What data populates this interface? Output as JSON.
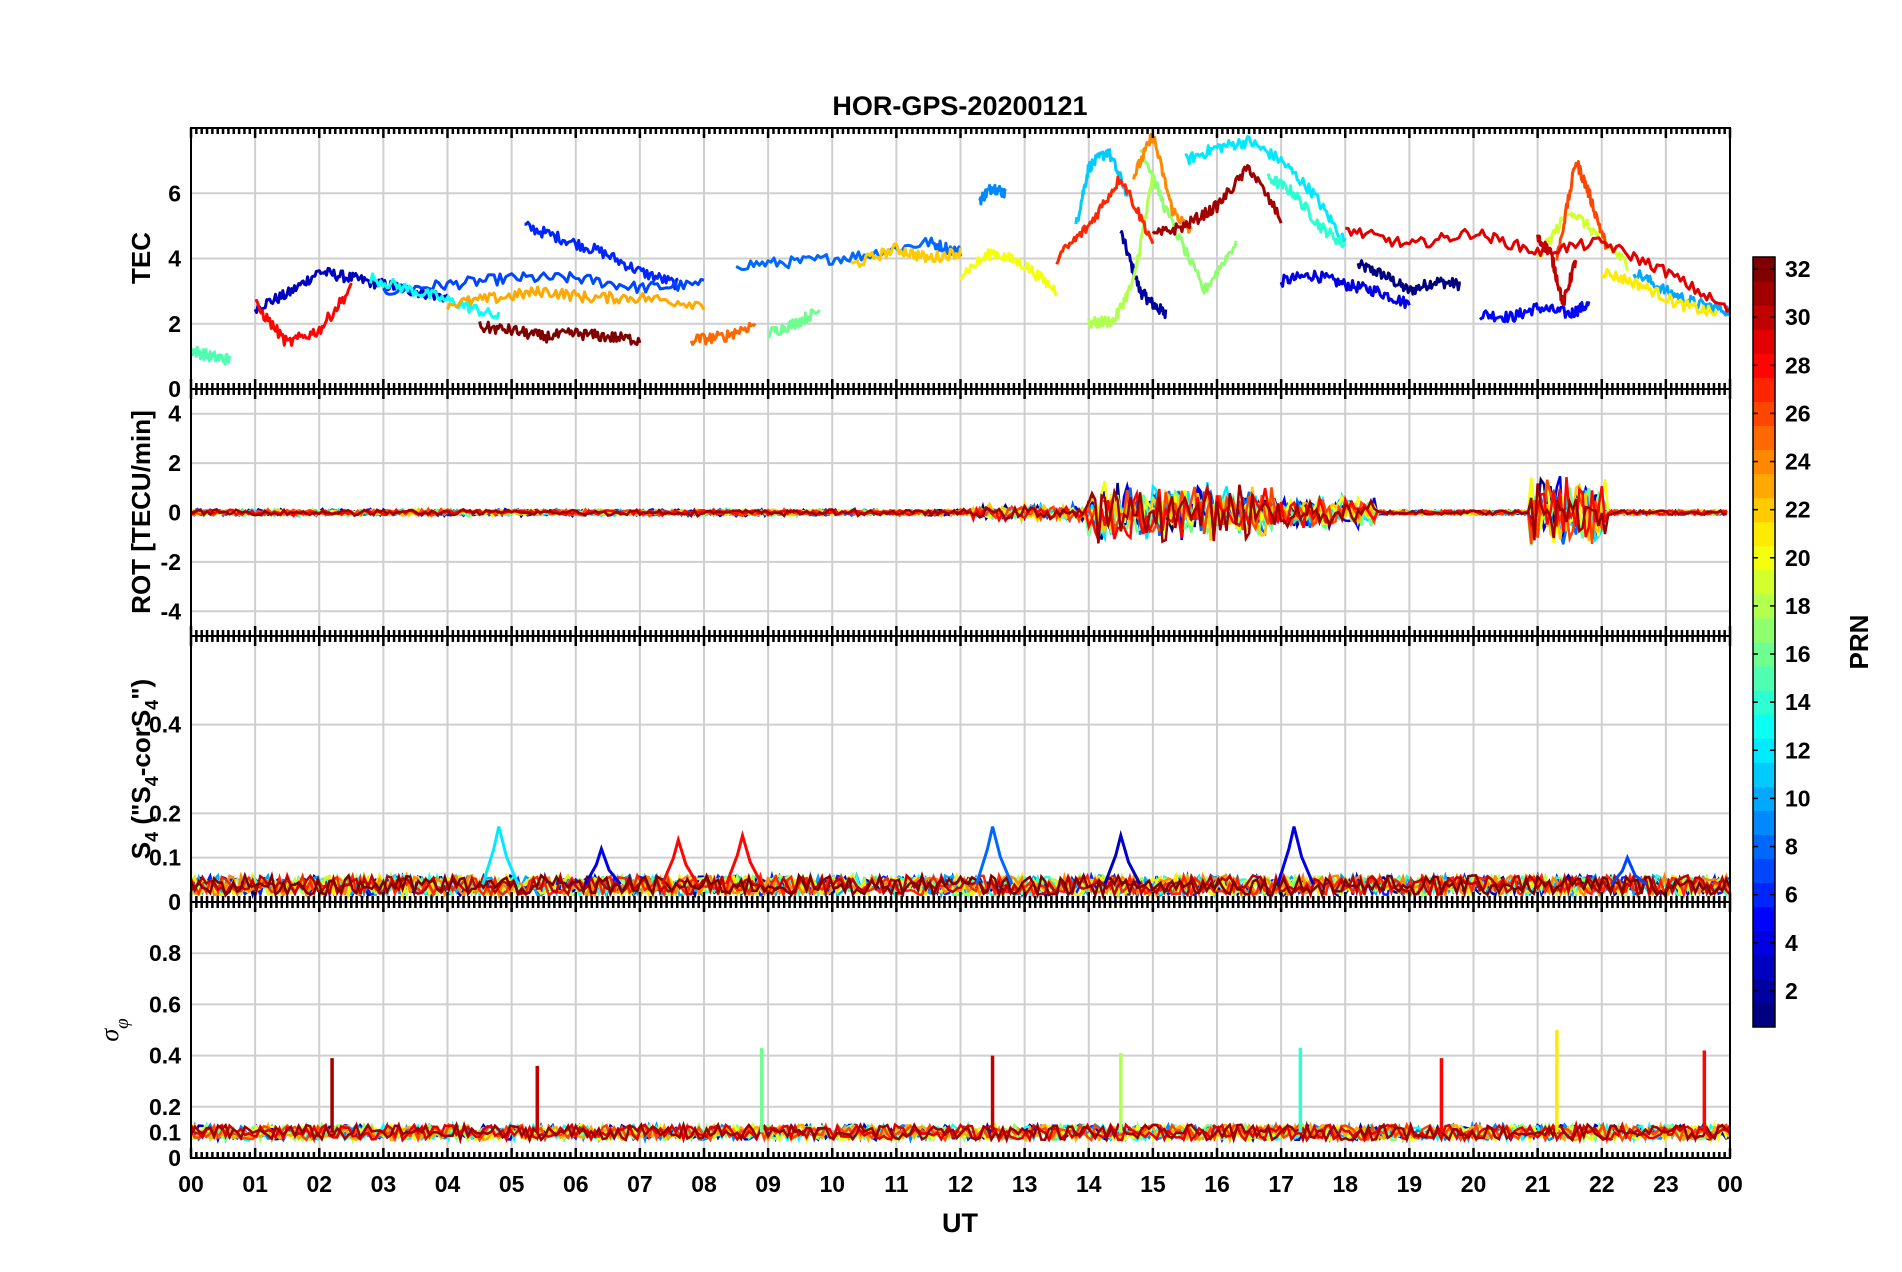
{
  "chart_data": {
    "type": "line",
    "title": "HOR-GPS-20200121",
    "xlabel": "UT",
    "x_ticks": [
      "00",
      "01",
      "02",
      "03",
      "04",
      "05",
      "06",
      "07",
      "08",
      "09",
      "10",
      "11",
      "12",
      "13",
      "14",
      "15",
      "16",
      "17",
      "18",
      "19",
      "20",
      "21",
      "22",
      "23",
      "00"
    ],
    "xlim_hours": [
      0,
      24
    ],
    "colorbar": {
      "label": "PRN",
      "range": [
        1,
        32
      ],
      "ticks": [
        "2",
        "4",
        "6",
        "8",
        "10",
        "12",
        "14",
        "16",
        "18",
        "20",
        "22",
        "24",
        "26",
        "28",
        "30",
        "32"
      ],
      "colormap": "jet"
    },
    "panels": [
      {
        "ylabel": "TEC",
        "ylim": [
          0,
          8
        ],
        "y_ticks": [
          "0",
          "2",
          "4",
          "6"
        ],
        "series": [
          {
            "prn": 1,
            "x": [
              18.2,
              18.6,
              19.0,
              19.4,
              19.8
            ],
            "y": [
              3.8,
              3.5,
              3.0,
              3.3,
              3.2
            ]
          },
          {
            "prn": 2,
            "x": [
              14.5,
              14.8,
              15.0,
              15.2
            ],
            "y": [
              4.8,
              3.0,
              2.6,
              2.3
            ]
          },
          {
            "prn": 3,
            "x": [
              1.0,
              1.5,
              2.0,
              2.5,
              3.0,
              3.5,
              4.0
            ],
            "y": [
              2.5,
              2.9,
              3.6,
              3.4,
              3.2,
              3.0,
              2.8
            ]
          },
          {
            "prn": 4,
            "x": [
              17.0,
              17.5,
              18.0,
              18.5,
              19.0
            ],
            "y": [
              3.3,
              3.5,
              3.2,
              3.0,
              2.6
            ]
          },
          {
            "prn": 5,
            "x": [
              20.1,
              20.6,
              21.0,
              21.5,
              21.8
            ],
            "y": [
              2.3,
              2.2,
              2.5,
              2.3,
              2.6
            ]
          },
          {
            "prn": 6,
            "x": [
              5.2,
              5.8,
              6.4,
              7.0,
              7.6
            ],
            "y": [
              5.0,
              4.6,
              4.2,
              3.6,
              3.2
            ]
          },
          {
            "prn": 7,
            "x": [
              3.0,
              4.0,
              5.0,
              6.0,
              7.0,
              8.0
            ],
            "y": [
              3.0,
              3.2,
              3.4,
              3.4,
              3.1,
              3.2
            ]
          },
          {
            "prn": 8,
            "x": [
              8.5,
              9.5,
              10.5,
              11.5,
              12.0
            ],
            "y": [
              3.8,
              3.9,
              4.1,
              4.5,
              4.2
            ]
          },
          {
            "prn": 9,
            "x": [
              12.3,
              12.5,
              12.7
            ],
            "y": [
              5.8,
              6.2,
              6.0
            ]
          },
          {
            "prn": 10,
            "x": [
              22.5,
              23.0,
              23.5,
              24.0
            ],
            "y": [
              3.6,
              3.0,
              2.6,
              2.4
            ]
          },
          {
            "prn": 11,
            "x": [
              13.8,
              14.0,
              14.3,
              14.6
            ],
            "y": [
              5.0,
              6.8,
              7.3,
              6.0
            ]
          },
          {
            "prn": 12,
            "x": [
              15.5,
              16.0,
              16.5,
              17.0,
              17.5,
              18.0
            ],
            "y": [
              7.0,
              7.4,
              7.6,
              7.0,
              6.0,
              4.5
            ]
          },
          {
            "prn": 13,
            "x": [
              2.8,
              3.5,
              4.2,
              4.8
            ],
            "y": [
              3.4,
              3.0,
              2.6,
              2.2
            ]
          },
          {
            "prn": 14,
            "x": [
              16.8,
              17.2,
              17.6,
              18.0
            ],
            "y": [
              6.5,
              6.0,
              5.0,
              4.4
            ]
          },
          {
            "prn": 15,
            "x": [
              0.0,
              0.3,
              0.6
            ],
            "y": [
              1.2,
              1.0,
              0.9
            ]
          },
          {
            "prn": 16,
            "x": [
              9.0,
              9.4,
              9.8
            ],
            "y": [
              1.7,
              2.0,
              2.4
            ]
          },
          {
            "prn": 17,
            "x": [
              14.8,
              15.2,
              15.8,
              16.3
            ],
            "y": [
              7.5,
              5.5,
              3.0,
              4.5
            ]
          },
          {
            "prn": 18,
            "x": [
              14.0,
              14.4,
              14.7,
              15.0
            ],
            "y": [
              2.0,
              2.1,
              3.3,
              6.5
            ]
          },
          {
            "prn": 19,
            "x": [
              21.0,
              21.5,
              22.0,
              22.4
            ],
            "y": [
              4.0,
              5.5,
              4.6,
              3.8
            ]
          },
          {
            "prn": 20,
            "x": [
              12.0,
              12.5,
              13.0,
              13.5
            ],
            "y": [
              3.5,
              4.2,
              3.8,
              3.0
            ]
          },
          {
            "prn": 21,
            "x": [
              22.0,
              22.6,
              23.2,
              23.8
            ],
            "y": [
              3.6,
              3.2,
              2.6,
              2.3
            ]
          },
          {
            "prn": 22,
            "x": [
              10.3,
              11.0,
              11.5,
              12.0
            ],
            "y": [
              3.8,
              4.3,
              4.0,
              4.2
            ]
          },
          {
            "prn": 23,
            "x": [
              4.0,
              4.8,
              5.5,
              6.2,
              7.0,
              8.0
            ],
            "y": [
              2.6,
              2.8,
              3.0,
              2.8,
              2.8,
              2.6
            ]
          },
          {
            "prn": 24,
            "x": [
              14.7,
              15.0,
              15.3,
              15.6
            ],
            "y": [
              6.5,
              7.8,
              5.5,
              4.8
            ]
          },
          {
            "prn": 25,
            "x": [
              7.8,
              8.3,
              8.8
            ],
            "y": [
              1.5,
              1.6,
              2.0
            ]
          },
          {
            "prn": 26,
            "x": [
              21.3,
              21.6,
              21.8,
              22.1
            ],
            "y": [
              4.0,
              7.0,
              6.0,
              4.2
            ]
          },
          {
            "prn": 27,
            "x": [
              13.5,
              14.0,
              14.5,
              15.0
            ],
            "y": [
              4.0,
              5.0,
              6.5,
              4.5
            ]
          },
          {
            "prn": 28,
            "x": [
              1.0,
              1.5,
              2.0,
              2.5
            ],
            "y": [
              2.6,
              1.4,
              1.8,
              3.1
            ]
          },
          {
            "prn": 29,
            "x": [
              18.0,
              19.0,
              20.0,
              21.0,
              22.0,
              23.0,
              24.0
            ],
            "y": [
              4.9,
              4.4,
              4.8,
              4.2,
              4.5,
              3.6,
              2.4
            ]
          },
          {
            "prn": 30,
            "x": [
              21.0,
              21.2,
              21.4,
              21.6
            ],
            "y": [
              4.6,
              4.2,
              2.6,
              4.0
            ]
          },
          {
            "prn": 31,
            "x": [
              15.0,
              15.5,
              16.0,
              16.5,
              17.0
            ],
            "y": [
              4.7,
              5.0,
              5.6,
              6.8,
              5.2
            ]
          },
          {
            "prn": 32,
            "x": [
              4.5,
              5.0,
              5.5,
              6.0,
              6.5,
              7.0
            ],
            "y": [
              1.9,
              1.8,
              1.6,
              1.7,
              1.6,
              1.5
            ]
          }
        ]
      },
      {
        "ylabel": "ROT [TECU/min]",
        "ylim": [
          -5,
          5
        ],
        "y_ticks": [
          "-4",
          "-2",
          "0",
          "2",
          "4"
        ],
        "bursts": [
          {
            "start": 14.0,
            "end": 16.9,
            "amp": 2.2
          },
          {
            "start": 16.9,
            "end": 18.5,
            "amp": 1.2
          },
          {
            "start": 20.9,
            "end": 22.1,
            "amp": 2.8
          },
          {
            "start": 12.2,
            "end": 14.0,
            "amp": 0.6
          },
          {
            "start": 0.0,
            "end": 12.2,
            "amp": 0.25
          }
        ]
      },
      {
        "ylabel": "S4 (\"S4-corS4\")",
        "ylim": [
          0,
          0.6
        ],
        "y_ticks": [
          "0",
          "0.1",
          "0.2",
          "0.4"
        ],
        "peaks": [
          {
            "t": 4.8,
            "v": 0.17,
            "prn": 12
          },
          {
            "t": 6.4,
            "v": 0.12,
            "prn": 4
          },
          {
            "t": 7.6,
            "v": 0.14,
            "prn": 28
          },
          {
            "t": 8.6,
            "v": 0.15,
            "prn": 28
          },
          {
            "t": 12.5,
            "v": 0.17,
            "prn": 8
          },
          {
            "t": 14.5,
            "v": 0.15,
            "prn": 3
          },
          {
            "t": 17.2,
            "v": 0.17,
            "prn": 4
          },
          {
            "t": 22.4,
            "v": 0.1,
            "prn": 7
          }
        ]
      },
      {
        "ylabel": "σφ",
        "ylim": [
          0,
          1
        ],
        "y_ticks": [
          "0",
          "0.1",
          "0.2",
          "0.4",
          "0.6",
          "0.8"
        ],
        "spikes": [
          {
            "t": 2.2,
            "v": 0.39,
            "prn": 31
          },
          {
            "t": 5.4,
            "v": 0.36,
            "prn": 30
          },
          {
            "t": 8.9,
            "v": 0.43,
            "prn": 16
          },
          {
            "t": 12.5,
            "v": 0.4,
            "prn": 30
          },
          {
            "t": 14.5,
            "v": 0.41,
            "prn": 18
          },
          {
            "t": 17.3,
            "v": 0.43,
            "prn": 14
          },
          {
            "t": 19.5,
            "v": 0.39,
            "prn": 28
          },
          {
            "t": 21.3,
            "v": 0.5,
            "prn": 21
          },
          {
            "t": 23.6,
            "v": 0.42,
            "prn": 28
          }
        ]
      }
    ]
  }
}
